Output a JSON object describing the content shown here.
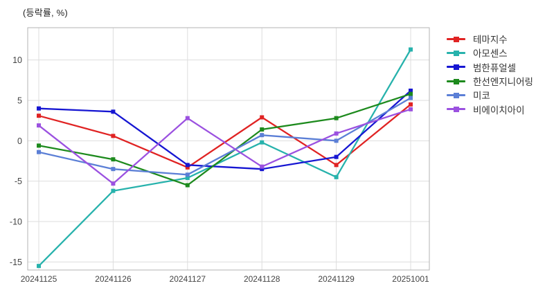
{
  "chart_data": {
    "type": "line",
    "title": "(등락률, %)",
    "x_labels": [
      "20241125",
      "20241126",
      "20241127",
      "20241128",
      "20241129",
      "20251001"
    ],
    "y_ticks": [
      10,
      5,
      0,
      -5,
      -10,
      -15
    ],
    "ylim": [
      -16,
      14
    ],
    "grid": true,
    "legend_position": "right",
    "marker": "square",
    "series": [
      {
        "name": "테마지수",
        "color": "#e02323",
        "values": [
          3.1,
          0.6,
          -3.3,
          2.9,
          -3.0,
          4.5
        ]
      },
      {
        "name": "아모센스",
        "color": "#27b2ac",
        "values": [
          -15.5,
          -6.2,
          -4.6,
          -0.2,
          -4.5,
          11.3
        ]
      },
      {
        "name": "범한퓨얼셀",
        "color": "#1616d2",
        "values": [
          4.0,
          3.6,
          -3.0,
          -3.5,
          -2.0,
          6.2
        ]
      },
      {
        "name": "한선엔지니어링",
        "color": "#1d8a1d",
        "values": [
          -0.6,
          -2.3,
          -5.5,
          1.4,
          2.8,
          5.8
        ]
      },
      {
        "name": "미코",
        "color": "#5b7fd6",
        "values": [
          -1.4,
          -3.5,
          -4.2,
          0.7,
          0.0,
          5.3
        ]
      },
      {
        "name": "비에이치아이",
        "color": "#9b51e0",
        "values": [
          1.9,
          -5.3,
          2.8,
          -3.2,
          0.9,
          3.9
        ]
      }
    ],
    "plot": {
      "frame_color": "#b3b3b3",
      "grid_color": "#dddddd",
      "tick_label_color": "#444444"
    }
  }
}
